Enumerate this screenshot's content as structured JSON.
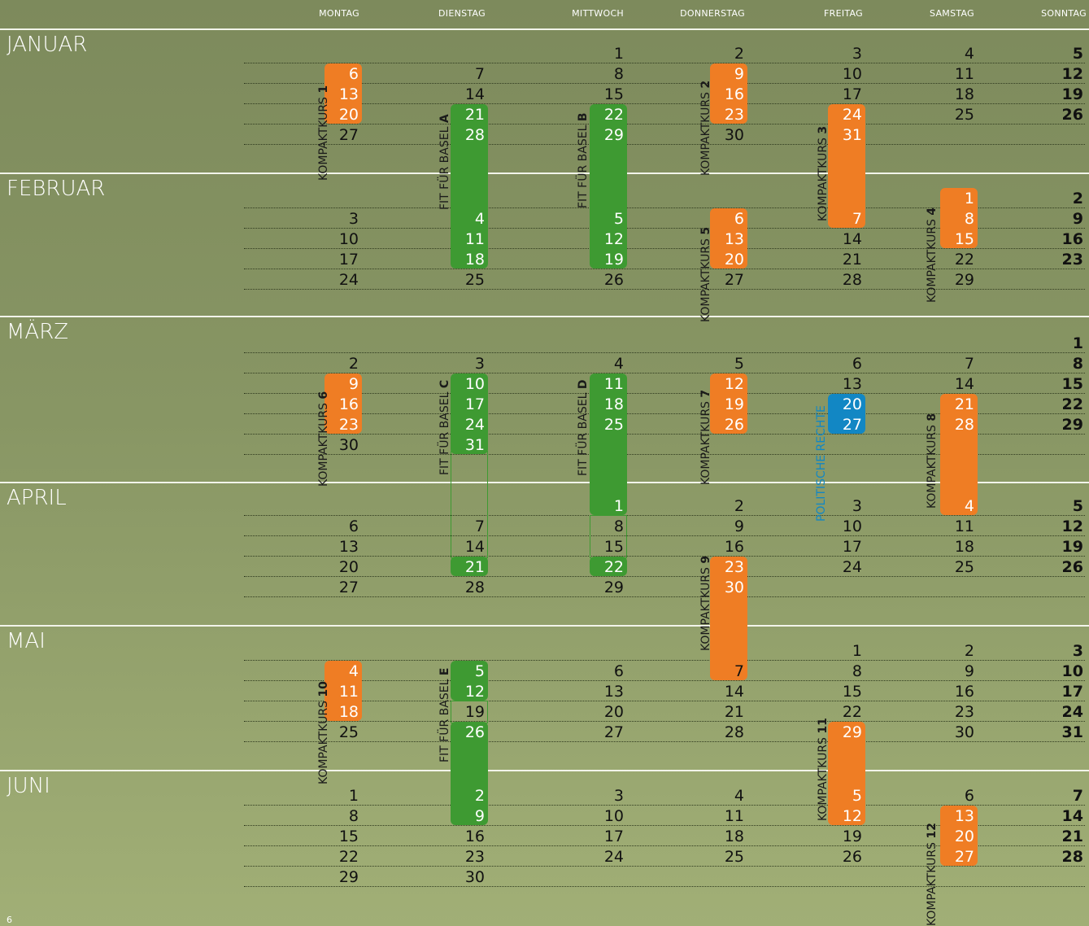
{
  "days": [
    "MONTAG",
    "DIENSTAG",
    "MITTWOCH",
    "DONNERSTAG",
    "FREITAG",
    "SAMSTAG",
    "SONNTAG"
  ],
  "months": [
    {
      "name": "JANUAR",
      "rows": [
        [
          "",
          "",
          "1",
          "2",
          "3",
          "4",
          "5"
        ],
        [
          "6",
          "7",
          "8",
          "9",
          "10",
          "11",
          "12"
        ],
        [
          "13",
          "14",
          "15",
          "16",
          "17",
          "18",
          "19"
        ],
        [
          "20",
          "21",
          "22",
          "23",
          "24",
          "25",
          "26"
        ],
        [
          "27",
          "28",
          "29",
          "30",
          "31",
          "",
          ""
        ]
      ]
    },
    {
      "name": "FEBRUAR",
      "rows": [
        [
          "",
          "",
          "",
          "",
          "",
          "1",
          "2"
        ],
        [
          "3",
          "4",
          "5",
          "6",
          "7",
          "8",
          "9"
        ],
        [
          "10",
          "11",
          "12",
          "13",
          "14",
          "15",
          "16"
        ],
        [
          "17",
          "18",
          "19",
          "20",
          "21",
          "22",
          "23"
        ],
        [
          "24",
          "25",
          "26",
          "27",
          "28",
          "29",
          ""
        ]
      ]
    },
    {
      "name": "MÄRZ",
      "rows": [
        [
          "",
          "",
          "",
          "",
          "",
          "",
          "1"
        ],
        [
          "2",
          "3",
          "4",
          "5",
          "6",
          "7",
          "8"
        ],
        [
          "9",
          "10",
          "11",
          "12",
          "13",
          "14",
          "15"
        ],
        [
          "16",
          "17",
          "18",
          "19",
          "20",
          "21",
          "22"
        ],
        [
          "23",
          "24",
          "25",
          "26",
          "27",
          "28",
          "29"
        ],
        [
          "30",
          "31",
          "",
          "",
          "",
          "",
          ""
        ]
      ]
    },
    {
      "name": "APRIL",
      "rows": [
        [
          "",
          "",
          "1",
          "2",
          "3",
          "4",
          "5"
        ],
        [
          "6",
          "7",
          "8",
          "9",
          "10",
          "11",
          "12"
        ],
        [
          "13",
          "14",
          "15",
          "16",
          "17",
          "18",
          "19"
        ],
        [
          "20",
          "21",
          "22",
          "23",
          "24",
          "25",
          "26"
        ],
        [
          "27",
          "28",
          "29",
          "30",
          "",
          "",
          ""
        ]
      ]
    },
    {
      "name": "MAI",
      "rows": [
        [
          "",
          "",
          "",
          "",
          "1",
          "2",
          "3"
        ],
        [
          "4",
          "5",
          "6",
          "7",
          "8",
          "9",
          "10"
        ],
        [
          "11",
          "12",
          "13",
          "14",
          "15",
          "16",
          "17"
        ],
        [
          "18",
          "19",
          "20",
          "21",
          "22",
          "23",
          "24"
        ],
        [
          "25",
          "26",
          "27",
          "28",
          "29",
          "30",
          "31"
        ]
      ]
    },
    {
      "name": "JUNI",
      "rows": [
        [
          "1",
          "2",
          "3",
          "4",
          "5",
          "6",
          "7"
        ],
        [
          "8",
          "9",
          "10",
          "11",
          "12",
          "13",
          "14"
        ],
        [
          "15",
          "16",
          "17",
          "18",
          "19",
          "20",
          "21"
        ],
        [
          "22",
          "23",
          "24",
          "25",
          "26",
          "27",
          "28"
        ],
        [
          "29",
          "30",
          "",
          "",
          "",
          "",
          ""
        ]
      ]
    }
  ],
  "white_dates": [
    "0-1-0",
    "0-2-0",
    "0-3-0",
    "0-1-3",
    "0-2-3",
    "0-3-3",
    "0-3-1",
    "0-3-2",
    "0-4-1",
    "0-4-2",
    "0-3-4",
    "0-4-4",
    "1-0-5",
    "1-1-5",
    "1-2-5",
    "1-1-4",
    "1-1-1",
    "1-2-1",
    "1-3-1",
    "1-1-2",
    "1-2-2",
    "1-3-2",
    "1-1-3",
    "1-2-3",
    "1-3-3",
    "2-2-0",
    "2-3-0",
    "2-4-0",
    "2-2-1",
    "2-3-1",
    "2-4-1",
    "2-5-1",
    "2-2-2",
    "2-3-2",
    "2-4-2",
    "2-2-3",
    "2-3-3",
    "2-4-3",
    "2-3-4",
    "2-4-4",
    "2-3-5",
    "2-4-5",
    "3-0-2",
    "3-0-5",
    "3-3-1",
    "3-3-2",
    "3-3-3",
    "3-4-3",
    "4-1-0",
    "4-2-0",
    "4-3-0",
    "4-1-1",
    "4-2-1",
    "4-4-1",
    "4-0-3",
    "4-4-4",
    "5-0-1",
    "5-1-1",
    "5-0-4",
    "5-1-4",
    "5-1-5",
    "5-2-5",
    "5-3-5"
  ],
  "courses": [
    {
      "id": "kk1",
      "prefix": "KOMPAKTKURS ",
      "num": "1",
      "color": "orange"
    },
    {
      "id": "kk2",
      "prefix": "KOMPAKTKURS ",
      "num": "2",
      "color": "orange"
    },
    {
      "id": "kk3",
      "prefix": "KOMPAKTKURS ",
      "num": "3",
      "color": "orange"
    },
    {
      "id": "kk4",
      "prefix": "KOMPAKTKURS ",
      "num": "4",
      "color": "orange"
    },
    {
      "id": "kk5",
      "prefix": "KOMPAKTKURS ",
      "num": "5",
      "color": "orange"
    },
    {
      "id": "kk6",
      "prefix": "KOMPAKTKURS ",
      "num": "6",
      "color": "orange"
    },
    {
      "id": "kk7",
      "prefix": "KOMPAKTKURS ",
      "num": "7",
      "color": "orange"
    },
    {
      "id": "kk8",
      "prefix": "KOMPAKTKURS ",
      "num": "8",
      "color": "orange"
    },
    {
      "id": "kk9",
      "prefix": "KOMPAKTKURS ",
      "num": "9",
      "color": "orange"
    },
    {
      "id": "kk10",
      "prefix": "KOMPAKTKURS ",
      "num": "10",
      "color": "orange"
    },
    {
      "id": "kk11",
      "prefix": "KOMPAKTKURS ",
      "num": "11",
      "color": "orange"
    },
    {
      "id": "kk12",
      "prefix": "KOMPAKTKURS ",
      "num": "12",
      "color": "orange"
    },
    {
      "id": "fitA",
      "prefix": "FIT FÜR BASEL ",
      "num": "A",
      "color": "green"
    },
    {
      "id": "fitB",
      "prefix": "FIT FÜR BASEL ",
      "num": "B",
      "color": "green"
    },
    {
      "id": "fitC",
      "prefix": "FIT FÜR BASEL ",
      "num": "C",
      "color": "green"
    },
    {
      "id": "fitD",
      "prefix": "FIT FÜR BASEL ",
      "num": "D",
      "color": "green"
    },
    {
      "id": "fitE",
      "prefix": "FIT FÜR BASEL ",
      "num": "E",
      "color": "green"
    },
    {
      "id": "pol",
      "prefix": "POLITISCHE RECHTE",
      "num": "",
      "color": "blue"
    }
  ],
  "colors": {
    "orange": "#ef7d24",
    "green": "#3e9a32",
    "blue": "#1287c4",
    "background": "#889664"
  },
  "page_number": "6"
}
